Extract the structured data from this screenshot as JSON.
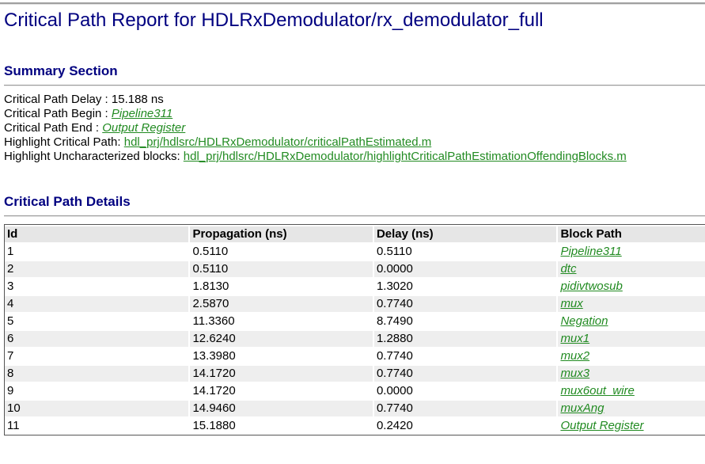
{
  "report": {
    "title": "Critical Path Report for HDLRxDemodulator/rx_demodulator_full"
  },
  "summary": {
    "heading": "Summary Section",
    "delay_label": "Critical Path Delay : ",
    "delay_value": "15.188 ns",
    "begin_label": "Critical Path Begin : ",
    "begin_link": "Pipeline311",
    "end_label": "Critical Path End : ",
    "end_link": "Output Register",
    "highlight_label": "Highlight Critical Path: ",
    "highlight_link": "hdl_prj/hdlsrc/HDLRxDemodulator/criticalPathEstimated.m",
    "uncharacterized_label": "Highlight Uncharacterized blocks: ",
    "uncharacterized_link": "hdl_prj/hdlsrc/HDLRxDemodulator/highlightCriticalPathEstimationOffendingBlocks.m"
  },
  "details": {
    "heading": "Critical Path Details",
    "columns": [
      "Id",
      "Propagation (ns)",
      "Delay (ns)",
      "Block Path"
    ],
    "rows": [
      [
        "1",
        "0.5110",
        "0.5110",
        "Pipeline311"
      ],
      [
        "2",
        "0.5110",
        "0.0000",
        "dtc"
      ],
      [
        "3",
        "1.8130",
        "1.3020",
        "pidivtwosub"
      ],
      [
        "4",
        "2.5870",
        "0.7740",
        "mux"
      ],
      [
        "5",
        "11.3360",
        "8.7490",
        "Negation"
      ],
      [
        "6",
        "12.6240",
        "1.2880",
        "mux1"
      ],
      [
        "7",
        "13.3980",
        "0.7740",
        "mux2"
      ],
      [
        "8",
        "14.1720",
        "0.7740",
        "mux3"
      ],
      [
        "9",
        "14.1720",
        "0.0000",
        "mux6out_wire"
      ],
      [
        "10",
        "14.9460",
        "0.7740",
        "muxAng"
      ],
      [
        "11",
        "15.1880",
        "0.2420",
        "Output Register"
      ]
    ]
  },
  "colors": {
    "title": "#000080",
    "link": "#228b22",
    "row_shade": "#eeeeee",
    "header_shade": "#e6e6e6"
  }
}
